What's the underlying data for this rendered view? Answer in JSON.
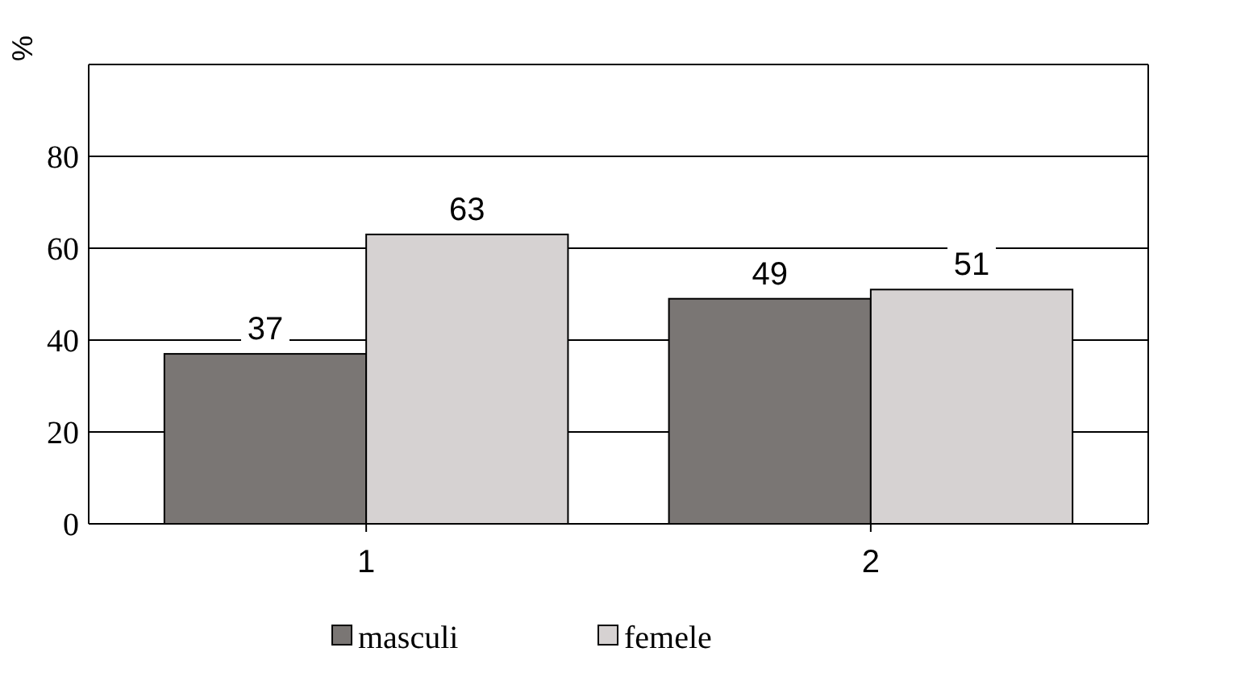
{
  "chart_data": {
    "type": "bar",
    "ylabel": "%",
    "categories": [
      "1",
      "2"
    ],
    "series": [
      {
        "name": "masculi",
        "color": "#7a7674",
        "values": [
          37,
          49
        ]
      },
      {
        "name": "femele",
        "color": "#d6d2d2",
        "values": [
          63,
          51
        ]
      }
    ],
    "ylim": [
      0,
      100
    ],
    "yticks": [
      0,
      20,
      40,
      60,
      80,
      {
        "value": 100,
        "label": null
      }
    ],
    "grid": "y",
    "legend": "bottom",
    "data_labels": true
  }
}
